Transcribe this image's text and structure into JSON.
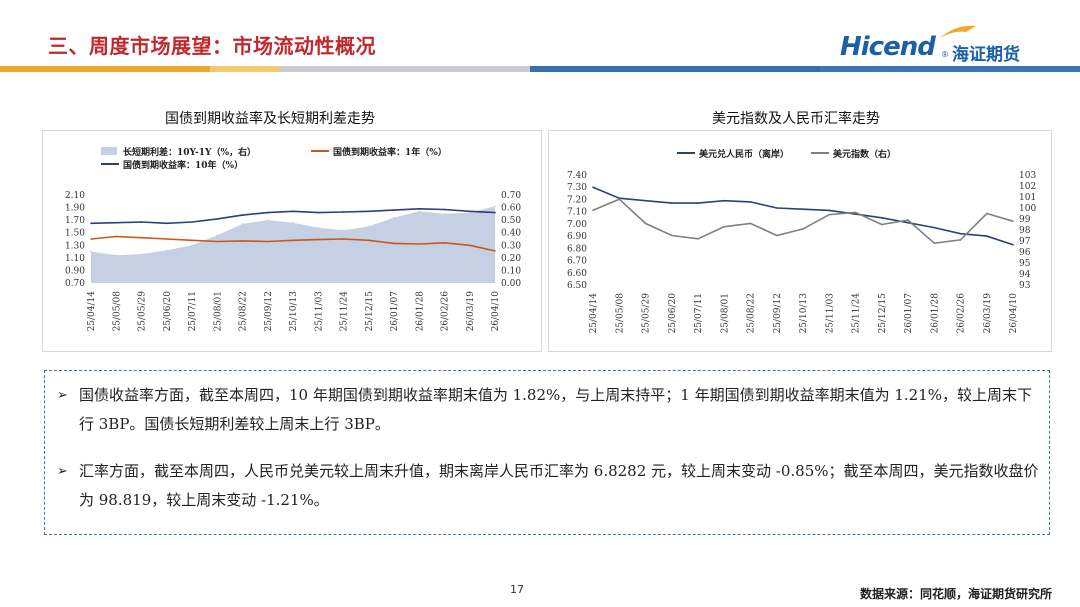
{
  "header": {
    "title": "三、周度市场展望：市场流动性概况",
    "logo_text": "Hicend",
    "logo_cn": "海证期货",
    "logo_reg": "®"
  },
  "colors": {
    "title_red": "#c0282d",
    "brand_blue": "#1a5fa8",
    "bar_orange": "#f0a830",
    "bar_gray": "#c9ccd2",
    "series_navy": "#2e3f7a",
    "series_orange": "#c8571c",
    "series_gray": "#808080",
    "area_fill": "#c6d0e4"
  },
  "chart_data": [
    {
      "type": "line",
      "title": "国债到期收益率及长短期利差走势",
      "legend": [
        "长短期利差：10Y-1Y（%，右）",
        "国债到期收益率：1年（%）",
        "国债到期收益率：10年（%）"
      ],
      "legend_position": "top",
      "x_ticks": [
        "25/04/14",
        "25/05/08",
        "25/05/29",
        "25/06/20",
        "25/07/11",
        "25/08/01",
        "25/08/22",
        "25/09/12",
        "25/10/13",
        "25/11/03",
        "25/11/24",
        "25/12/15",
        "26/01/07",
        "26/01/28",
        "26/02/26",
        "26/03/19",
        "26/04/10"
      ],
      "y_left_ticks": [
        "2.10",
        "1.90",
        "1.70",
        "1.50",
        "1.30",
        "1.10",
        "0.90",
        "0.70"
      ],
      "y_left_range": [
        0.7,
        2.1
      ],
      "y_right_ticks": [
        "0.70",
        "0.60",
        "0.50",
        "0.40",
        "0.30",
        "0.20",
        "0.10",
        "0.00"
      ],
      "y_right_range": [
        0.0,
        0.7
      ],
      "series": [
        {
          "name": "长短期利差：10Y-1Y（%，右）",
          "kind": "area",
          "axis": "right",
          "values": [
            0.25,
            0.22,
            0.23,
            0.26,
            0.3,
            0.38,
            0.47,
            0.5,
            0.48,
            0.44,
            0.42,
            0.45,
            0.52,
            0.57,
            0.55,
            0.56,
            0.61
          ]
        },
        {
          "name": "国债到期收益率：1年（%）",
          "kind": "line",
          "axis": "left",
          "values": [
            1.4,
            1.44,
            1.42,
            1.4,
            1.38,
            1.36,
            1.37,
            1.36,
            1.38,
            1.39,
            1.4,
            1.38,
            1.33,
            1.32,
            1.34,
            1.3,
            1.21
          ]
        },
        {
          "name": "国债到期收益率：10年（%）",
          "kind": "line",
          "axis": "left",
          "values": [
            1.65,
            1.66,
            1.67,
            1.65,
            1.67,
            1.72,
            1.78,
            1.82,
            1.84,
            1.82,
            1.83,
            1.84,
            1.86,
            1.88,
            1.87,
            1.84,
            1.82
          ]
        }
      ]
    },
    {
      "type": "line",
      "title": "美元指数及人民币汇率走势",
      "legend": [
        "美元兑人民币（离岸）",
        "美元指数（右）"
      ],
      "legend_position": "top",
      "x_ticks": [
        "25/04/14",
        "25/05/08",
        "25/05/29",
        "25/06/20",
        "25/07/11",
        "25/08/01",
        "25/08/22",
        "25/09/12",
        "25/10/13",
        "25/11/03",
        "25/11/24",
        "25/12/15",
        "26/01/07",
        "26/01/28",
        "26/02/26",
        "26/03/19",
        "26/04/10"
      ],
      "y_left_ticks": [
        "7.40",
        "7.30",
        "7.20",
        "7.10",
        "7.00",
        "6.90",
        "6.80",
        "6.70",
        "6.60",
        "6.50"
      ],
      "y_left_range": [
        6.5,
        7.4
      ],
      "y_right_ticks": [
        "103",
        "102",
        "101",
        "100",
        "99",
        "98",
        "97",
        "96",
        "95",
        "94",
        "93"
      ],
      "y_right_range": [
        93,
        103
      ],
      "series": [
        {
          "name": "美元兑人民币（离岸）",
          "axis": "left",
          "values": [
            7.3,
            7.21,
            7.19,
            7.17,
            7.17,
            7.19,
            7.18,
            7.13,
            7.12,
            7.11,
            7.08,
            7.05,
            7.01,
            6.97,
            6.92,
            6.9,
            6.83
          ]
        },
        {
          "name": "美元指数（右）",
          "axis": "right",
          "values": [
            99.8,
            100.8,
            98.6,
            97.5,
            97.2,
            98.3,
            98.6,
            97.5,
            98.1,
            99.4,
            99.6,
            98.5,
            98.9,
            96.8,
            97.1,
            99.5,
            98.8
          ]
        }
      ]
    }
  ],
  "body": {
    "bullet1": "国债收益率方面，截至本周四，10 年期国债到期收益率期末值为 1.82%，与上周末持平；1 年期国债到期收益率期末值为 1.21%，较上周末下行 3BP。国债长短期利差较上周末上行 3BP。",
    "bullet2": "汇率方面，截至本周四，人民币兑美元较上周末升值，期末离岸人民币汇率为 6.8282 元，较上周末变动 -0.85%；截至本周四，美元指数收盘价为 98.819，较上周末变动 -1.21%。",
    "arrow": "➢"
  },
  "footer": {
    "page_number": "17",
    "source": "数据来源：同花顺，海证期货研究所"
  }
}
